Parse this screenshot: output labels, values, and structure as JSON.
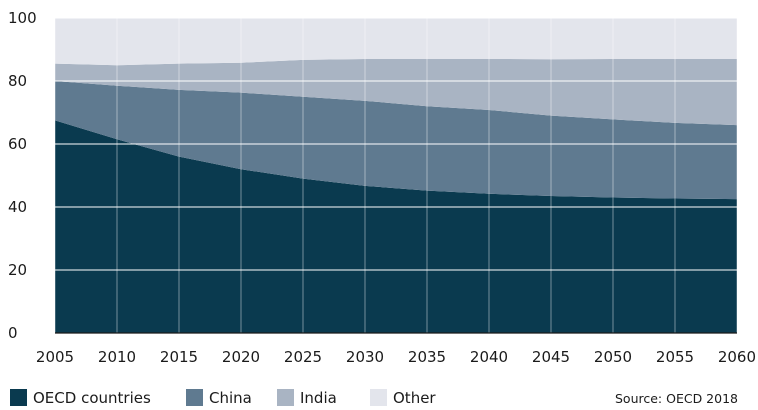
{
  "chart_data": {
    "type": "area",
    "stacked": true,
    "x": [
      2005,
      2010,
      2015,
      2020,
      2025,
      2030,
      2035,
      2040,
      2045,
      2050,
      2055,
      2060
    ],
    "series": [
      {
        "name": "OECD countries",
        "color": "#0a3a4f",
        "values": [
          67.5,
          61.5,
          56.0,
          52.0,
          49.0,
          46.7,
          45.2,
          44.2,
          43.5,
          43.0,
          42.7,
          42.5
        ]
      },
      {
        "name": "China",
        "color": "#5f7a90",
        "values": [
          12.5,
          17.0,
          21.2,
          24.3,
          26.0,
          27.0,
          26.8,
          26.6,
          25.5,
          24.8,
          24.0,
          23.5
        ]
      },
      {
        "name": "India",
        "color": "#a9b4c3",
        "values": [
          5.5,
          6.5,
          8.3,
          9.5,
          11.7,
          13.3,
          15.0,
          16.2,
          17.9,
          19.2,
          20.3,
          21.0
        ]
      },
      {
        "name": "Other",
        "color": "#e3e5ec",
        "values": [
          14.5,
          15.0,
          14.5,
          14.2,
          13.3,
          13.0,
          13.0,
          13.0,
          13.1,
          13.0,
          13.0,
          13.0
        ]
      }
    ],
    "x_ticks": [
      "2005",
      "2010",
      "2015",
      "2020",
      "2025",
      "2030",
      "2035",
      "2040",
      "2045",
      "2050",
      "2055",
      "2060"
    ],
    "y_ticks": [
      "0",
      "20",
      "40",
      "60",
      "80",
      "100"
    ],
    "xlim": [
      2005,
      2060
    ],
    "ylim": [
      0,
      100
    ],
    "grid": true,
    "legend_position": "bottom-left",
    "source": "Source: OECD 2018"
  }
}
